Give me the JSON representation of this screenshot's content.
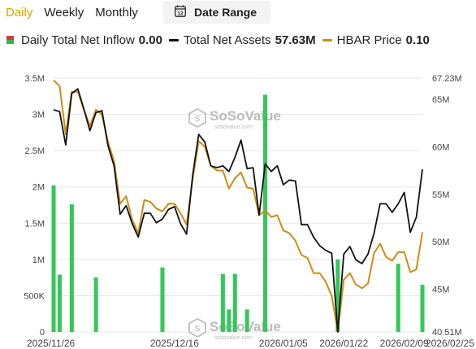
{
  "tabs": [
    {
      "label": "Daily",
      "active": true
    },
    {
      "label": "Weekly",
      "active": false
    },
    {
      "label": "Monthly",
      "active": false
    }
  ],
  "date_range": {
    "label": "Date Range",
    "icon": "calendar-icon",
    "icon_text": "12"
  },
  "legend": [
    {
      "name": "Daily Total Net Inflow",
      "value": "0.00",
      "color": "#34c759"
    },
    {
      "name": "Total Net Assets",
      "value": "57.63M",
      "color": "#111111"
    },
    {
      "name": "HBAR Price",
      "value": "0.10",
      "color": "#c98f16"
    }
  ],
  "watermark": {
    "brand": "SoSoValue",
    "site": "sosovalue.com"
  },
  "chart_data": {
    "type": "bar+line",
    "x_tick_labels": [
      "2025/11/26",
      "2025/12/16",
      "2026/01/05",
      "2026/01/22",
      "2026/02/09",
      "2026/02/25"
    ],
    "y_left": {
      "ticks": [
        "0",
        "500K",
        "1M",
        "1.5M",
        "2M",
        "2.5M",
        "3M",
        "3.5M"
      ],
      "range": [
        0,
        3500000
      ]
    },
    "y_right": {
      "ticks": [
        "40.51M",
        "45M",
        "50M",
        "55M",
        "60M",
        "65M",
        "67.23M"
      ],
      "range": [
        40.51,
        67.23
      ],
      "unit": "M"
    },
    "x_count": 62,
    "colors": {
      "bars": "#34c759",
      "assets": "#111111",
      "price": "#c98f16",
      "grid": "#e6e6e6"
    },
    "series": [
      {
        "name": "Daily Total Net Inflow",
        "kind": "bar",
        "axis": "left",
        "points": [
          {
            "i": 0,
            "v": 2020000
          },
          {
            "i": 1,
            "v": 790000
          },
          {
            "i": 3,
            "v": 1760000
          },
          {
            "i": 7,
            "v": 750000
          },
          {
            "i": 18,
            "v": 890000
          },
          {
            "i": 28,
            "v": 800000
          },
          {
            "i": 29,
            "v": 310000
          },
          {
            "i": 30,
            "v": 800000
          },
          {
            "i": 32,
            "v": 310000
          },
          {
            "i": 35,
            "v": 3270000
          },
          {
            "i": 47,
            "v": 1000000
          },
          {
            "i": 57,
            "v": 940000
          },
          {
            "i": 61,
            "v": 650000
          }
        ]
      },
      {
        "name": "Total Net Assets",
        "kind": "line",
        "axis": "right",
        "unit": "M",
        "values": [
          63.9,
          63.7,
          60.2,
          65.6,
          66.1,
          64.0,
          61.7,
          63.6,
          63.8,
          60.1,
          58.0,
          52.9,
          53.8,
          51.9,
          50.5,
          53.0,
          53.0,
          52.0,
          52.4,
          53.4,
          53.7,
          51.9,
          50.8,
          57.0,
          61.3,
          60.5,
          58.0,
          57.8,
          58.0,
          57.4,
          58.9,
          60.7,
          57.7,
          57.8,
          52.8,
          58.2,
          57.4,
          58.0,
          56.0,
          56.5,
          56.4,
          51.8,
          51.8,
          50.5,
          49.6,
          49.1,
          48.8,
          40.51,
          48.7,
          49.5,
          48.1,
          47.7,
          48.7,
          50.9,
          54.0,
          54.0,
          53.1,
          54.0,
          55.2,
          51.0,
          52.6,
          57.63
        ]
      },
      {
        "name": "HBAR Price",
        "kind": "line",
        "axis": "right",
        "values": [
          67.0,
          66.4,
          61.3,
          65.8,
          65.8,
          63.9,
          62.2,
          63.9,
          63.4,
          60.5,
          58.5,
          54.0,
          54.8,
          52.3,
          50.9,
          54.4,
          54.2,
          53.5,
          53.2,
          54.0,
          54.0,
          53.0,
          51.8,
          56.6,
          60.6,
          60.0,
          58.0,
          57.5,
          57.5,
          55.6,
          56.7,
          57.3,
          55.7,
          55.6,
          52.8,
          53.3,
          52.6,
          52.8,
          51.2,
          50.9,
          50.1,
          48.6,
          48.3,
          46.7,
          46.7,
          45.8,
          44.3,
          40.51,
          46.0,
          46.7,
          45.5,
          45.1,
          45.6,
          48.8,
          49.8,
          48.4,
          48.0,
          48.9,
          48.9,
          46.8,
          47.1,
          51.0
        ]
      }
    ]
  }
}
